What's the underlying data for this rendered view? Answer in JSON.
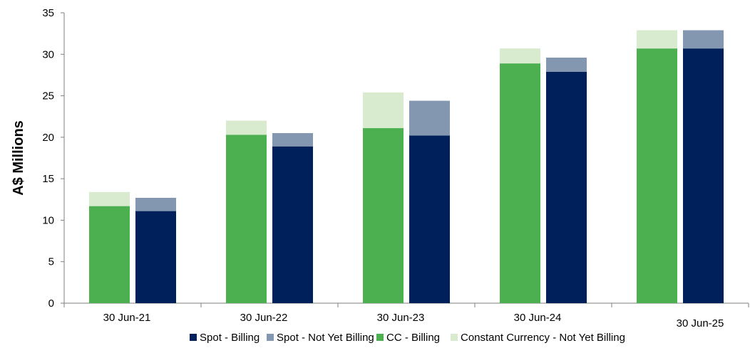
{
  "chart_data": {
    "type": "bar",
    "stacked_groups": true,
    "ylabel": "A$ Millions",
    "ylim": [
      0,
      35
    ],
    "yticks": [
      0,
      5,
      10,
      15,
      20,
      25,
      30,
      35
    ],
    "grid": false,
    "legend_placement": "bottom",
    "categories": [
      "30 Jun-21",
      "30 Jun-22",
      "30 Jun-23",
      "30 Jun-24",
      "30 Jun-25"
    ],
    "stacks": [
      {
        "id": "constant-currency",
        "segments": [
          {
            "series": "CC - Billing",
            "values": [
              11.7,
              20.3,
              21.1,
              28.9,
              30.7
            ],
            "color": "#4CAF50"
          },
          {
            "series": "Constant Currency - Not Yet Billing",
            "values": [
              1.7,
              1.7,
              4.3,
              1.8,
              2.2
            ],
            "color": "#D8EBCF"
          }
        ]
      },
      {
        "id": "spot",
        "segments": [
          {
            "series": "Spot - Billing",
            "values": [
              11.1,
              18.9,
              20.2,
              27.9,
              30.7
            ],
            "color": "#00205B"
          },
          {
            "series": "Spot - Not Yet Billing",
            "values": [
              1.6,
              1.6,
              4.2,
              1.7,
              2.2
            ],
            "color": "#8497B0"
          }
        ]
      }
    ],
    "legend": [
      {
        "label": "Spot - Billing",
        "color": "#00205B"
      },
      {
        "label": "Spot - Not Yet Billing",
        "color": "#8497B0"
      },
      {
        "label": "CC - Billing",
        "color": "#4CAF50"
      },
      {
        "label": "Constant Currency - Not Yet Billing",
        "color": "#D8EBCF"
      }
    ]
  }
}
